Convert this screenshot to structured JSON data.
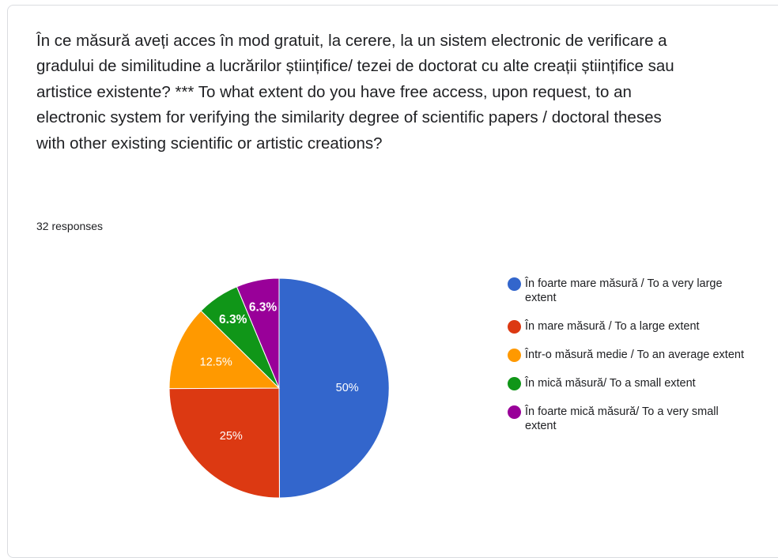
{
  "question": "În ce măsură aveți acces în mod gratuit, la cerere, la un sistem electronic de verificare a gradului de similitudine a lucrărilor științifice/ tezei de doctorat cu alte creații științifice sau artistice existente? *** To what extent do you have free access, upon request, to an electronic system for verifying the similarity degree of scientific papers / doctoral theses with other existing scientific or artistic creations?",
  "responses_label": "32 responses",
  "chart_data": {
    "type": "pie",
    "title": "",
    "slices": [
      {
        "label": "În foarte mare măsură / To a very large extent",
        "value": 50,
        "display": "50%",
        "color": "#3366cc"
      },
      {
        "label": "În mare măsură / To a large extent",
        "value": 25,
        "display": "25%",
        "color": "#dc3912"
      },
      {
        "label": "Într-o măsură medie / To an average extent",
        "value": 12.5,
        "display": "12.5%",
        "color": "#ff9900"
      },
      {
        "label": "În mică măsură/ To a small extent",
        "value": 6.3,
        "display": "6.3%",
        "color": "#109618"
      },
      {
        "label": "În foarte mică măsură/ To a very small extent",
        "value": 6.3,
        "display": "6.3%",
        "color": "#990099"
      }
    ],
    "legend_position": "right"
  }
}
